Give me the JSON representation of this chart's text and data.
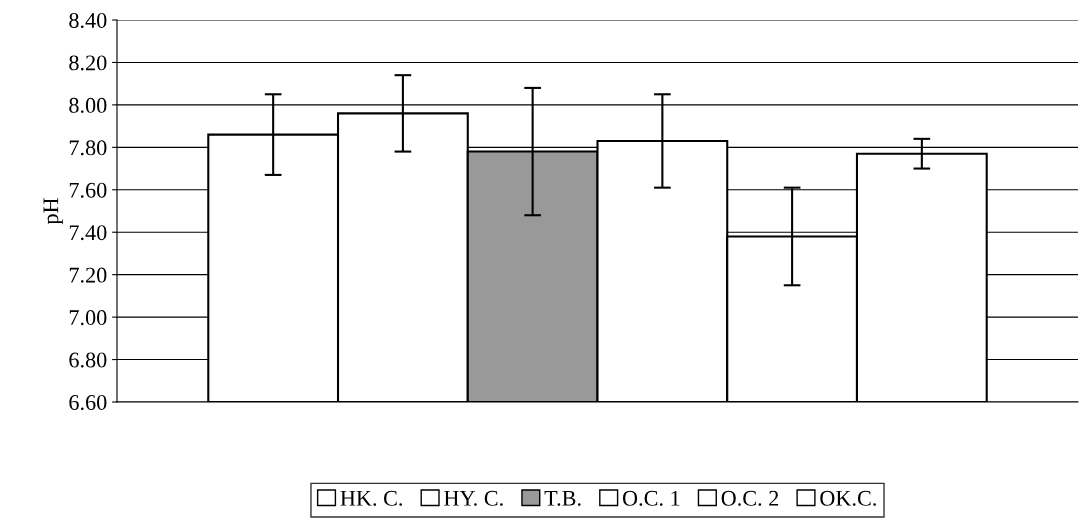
{
  "chart_data": {
    "type": "bar",
    "ylabel": "pH",
    "categories": [
      null
    ],
    "series": [
      {
        "name": "HK. C.",
        "color": "#ffffff",
        "values": [
          7.86
        ],
        "errors": [
          0.19
        ]
      },
      {
        "name": "HY. C.",
        "color": "#ffffff",
        "values": [
          7.96
        ],
        "errors": [
          0.18
        ]
      },
      {
        "name": "T.B.",
        "color": "#999999",
        "values": [
          7.78
        ],
        "errors": [
          0.3
        ]
      },
      {
        "name": "O.C. 1",
        "color": "#ffffff",
        "values": [
          7.83
        ],
        "errors": [
          0.22
        ]
      },
      {
        "name": "O.C. 2",
        "color": "#ffffff",
        "values": [
          7.38
        ],
        "errors": [
          0.23
        ]
      },
      {
        "name": "OK.C.",
        "color": "#ffffff",
        "values": [
          7.77
        ],
        "errors": [
          0.07
        ]
      }
    ],
    "ylim": [
      6.6,
      8.4
    ],
    "yticks": [
      {
        "value": 6.6,
        "label": "6.60"
      },
      {
        "value": 6.8,
        "label": "6.80"
      },
      {
        "value": 7.0,
        "label": "7.00"
      },
      {
        "value": 7.2,
        "label": "7.20"
      },
      {
        "value": 7.4,
        "label": "7.40"
      },
      {
        "value": 7.6,
        "label": "7.60"
      },
      {
        "value": 7.8,
        "label": "7.80"
      },
      {
        "value": 8.0,
        "label": "8.00"
      },
      {
        "value": 8.2,
        "label": "8.20"
      },
      {
        "value": 8.4,
        "label": "8.40"
      }
    ],
    "grid": "y",
    "legend": "bottom"
  }
}
